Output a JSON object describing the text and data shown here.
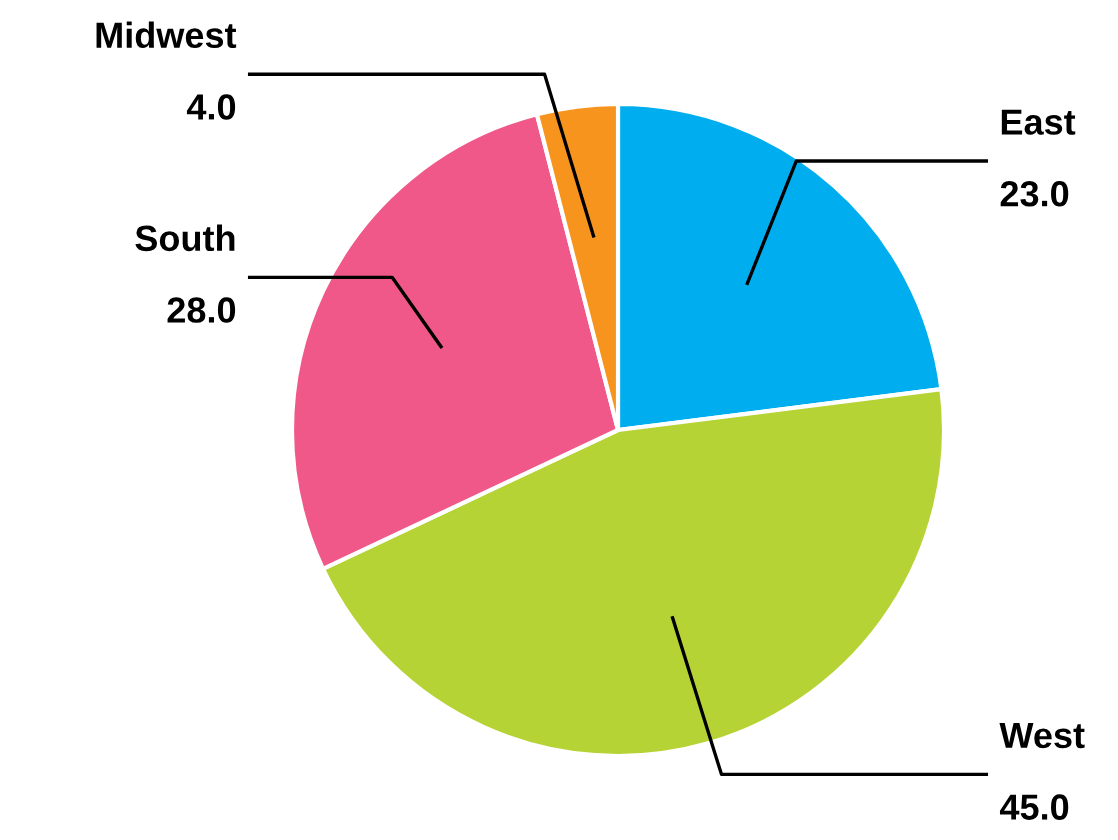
{
  "chart_data": {
    "type": "pie",
    "categories": [
      "East",
      "West",
      "South",
      "Midwest"
    ],
    "values": [
      23.0,
      45.0,
      28.0,
      4.0
    ],
    "colors": [
      "#00aeef",
      "#b5d334",
      "#f0588a",
      "#f7941d"
    ],
    "value_labels": [
      "23.0",
      "45.0",
      "28.0",
      "4.0"
    ],
    "legend": false
  }
}
